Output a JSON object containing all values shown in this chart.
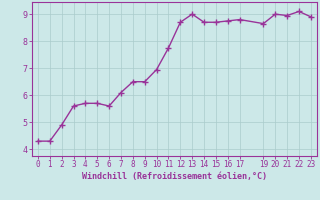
{
  "x": [
    0,
    1,
    2,
    3,
    4,
    5,
    6,
    7,
    8,
    9,
    10,
    11,
    12,
    13,
    14,
    15,
    16,
    17,
    19,
    20,
    21,
    22,
    23
  ],
  "y": [
    4.3,
    4.3,
    4.9,
    5.6,
    5.7,
    5.7,
    5.6,
    6.1,
    6.5,
    6.5,
    6.95,
    7.75,
    8.7,
    9.0,
    8.7,
    8.7,
    8.75,
    8.8,
    8.65,
    9.0,
    8.95,
    9.1,
    8.9
  ],
  "line_color": "#993399",
  "marker_color": "#993399",
  "bg_color": "#cce8e8",
  "grid_color": "#aacccc",
  "xlabel": "Windchill (Refroidissement éolien,°C)",
  "xlabel_color": "#993399",
  "tick_color": "#993399",
  "xticks": [
    0,
    1,
    2,
    3,
    4,
    5,
    6,
    7,
    8,
    9,
    10,
    11,
    12,
    13,
    14,
    15,
    16,
    17,
    19,
    20,
    21,
    22,
    23
  ],
  "yticks": [
    4,
    5,
    6,
    7,
    8,
    9
  ],
  "ylim": [
    3.75,
    9.45
  ],
  "xlim": [
    -0.5,
    23.5
  ],
  "spine_color": "#993399",
  "marker_size": 4,
  "line_width": 1.0,
  "tick_fontsize": 5.5,
  "xlabel_fontsize": 6.0
}
